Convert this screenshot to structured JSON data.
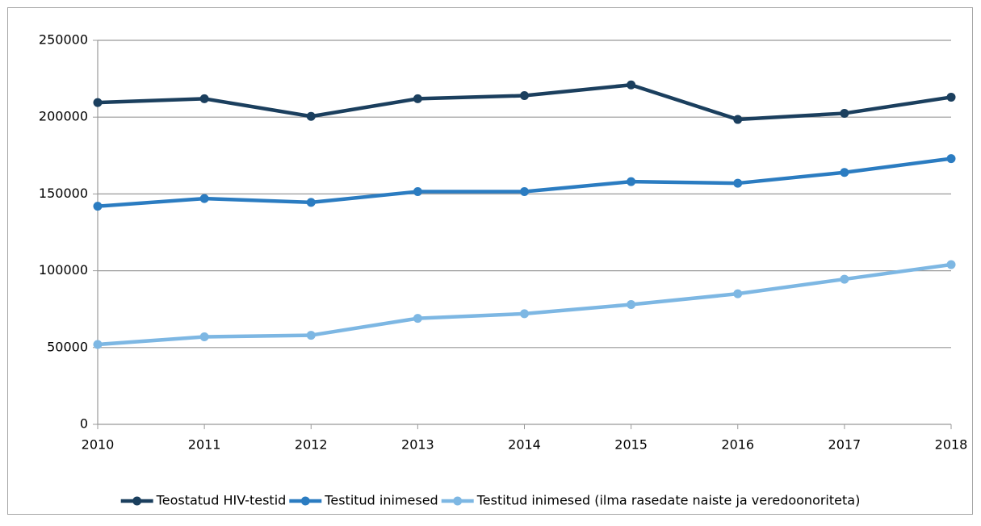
{
  "chart_data": {
    "type": "line",
    "categories": [
      "2010",
      "2011",
      "2012",
      "2013",
      "2014",
      "2015",
      "2016",
      "2017",
      "2018"
    ],
    "series": [
      {
        "name": "Teostatud HIV-testid",
        "color": "#1b3f5e",
        "values": [
          209500,
          212000,
          200500,
          212000,
          214000,
          221000,
          198500,
          202500,
          213000
        ]
      },
      {
        "name": "Testitud inimesed",
        "color": "#2b7cc1",
        "values": [
          142000,
          147000,
          144500,
          151500,
          151500,
          158000,
          157000,
          164000,
          173000
        ]
      },
      {
        "name": "Testitud inimesed (ilma rasedate naiste ja veredoonoriteta)",
        "color": "#7db7e3",
        "values": [
          52000,
          57000,
          58000,
          69000,
          72000,
          78000,
          85000,
          94500,
          104000
        ]
      }
    ],
    "ylim": [
      0,
      250000
    ],
    "yticks": [
      0,
      50000,
      100000,
      150000,
      200000,
      250000
    ],
    "grid": true,
    "legend": "bottom"
  }
}
